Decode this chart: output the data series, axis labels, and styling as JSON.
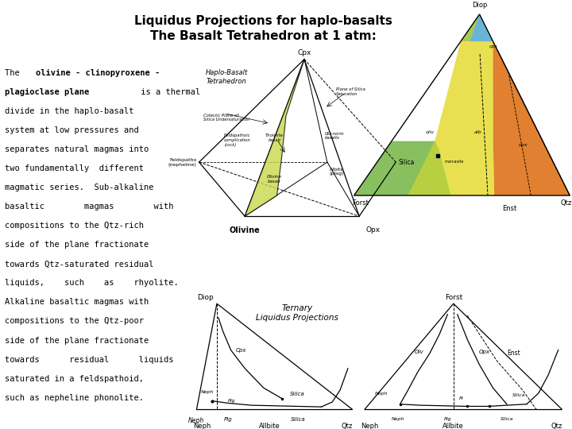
{
  "title_line1": "Liquidus Projections for haplo-basalts",
  "title_line2": "The Basalt Tetrahedron at 1 atm:",
  "background_color": "#ffffff",
  "text_color": "#000000",
  "title_fontsize": 11,
  "body_fontsize": 8.0,
  "left_text_lines": [
    [
      "norm",
      "The ",
      "bold",
      "olivine - clinopyroxene -"
    ],
    [
      "bold",
      "plagioclase plane",
      "norm",
      " is a thermal"
    ],
    [
      "norm",
      "divide in the haplo-basalt"
    ],
    [
      "norm",
      "system at low pressures and"
    ],
    [
      "norm",
      "separates natural magmas into"
    ],
    [
      "norm",
      "two fundamentally  different"
    ],
    [
      "norm",
      "magmatic series.  Sub-alkaline"
    ],
    [
      "norm",
      "basaltic        magmas        with"
    ],
    [
      "norm",
      "compositions to the Qtz-rich"
    ],
    [
      "norm",
      "side of the plane fractionate"
    ],
    [
      "norm",
      "towards Qtz-saturated residual"
    ],
    [
      "norm",
      "liquids,    such    as    rhyolite."
    ],
    [
      "norm",
      "Alkaline basaltic magmas with"
    ],
    [
      "norm",
      "compositions to the Qtz-poor"
    ],
    [
      "norm",
      "side of the plane fractionate"
    ],
    [
      "norm",
      "towards      residual      liquids"
    ],
    [
      "norm",
      "saturated in a feldspathoid,"
    ],
    [
      "norm",
      "such as nepheline phonolite."
    ]
  ]
}
